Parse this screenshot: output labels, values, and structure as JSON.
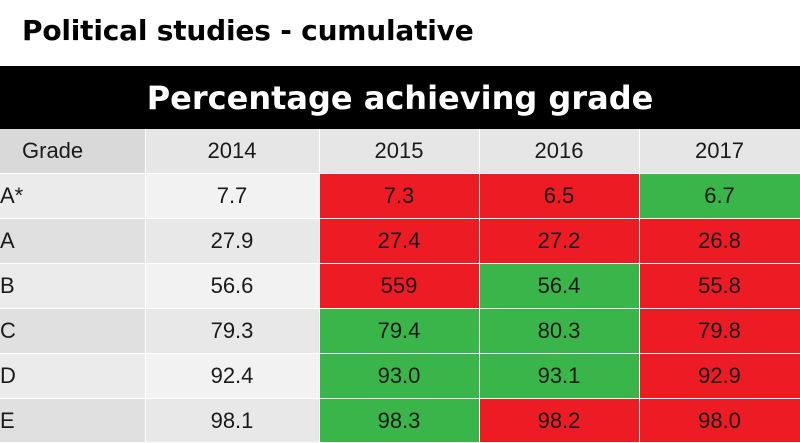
{
  "title": "Political studies - cumulative",
  "banner": "Percentage achieving grade",
  "colors": {
    "increase": "#3ab54a",
    "decrease": "#ed1c24"
  },
  "chart_data": {
    "type": "table",
    "columns": [
      "Grade",
      "2014",
      "2015",
      "2016",
      "2017"
    ],
    "rows": [
      {
        "grade": "A*",
        "values": [
          "7.7",
          "7.3",
          "6.5",
          "6.7"
        ],
        "change": [
          "none",
          "down",
          "down",
          "up"
        ]
      },
      {
        "grade": "A",
        "values": [
          "27.9",
          "27.4",
          "27.2",
          "26.8"
        ],
        "change": [
          "none",
          "down",
          "down",
          "down"
        ]
      },
      {
        "grade": "B",
        "values": [
          "56.6",
          "559",
          "56.4",
          "55.8"
        ],
        "change": [
          "none",
          "down",
          "up",
          "down"
        ]
      },
      {
        "grade": "C",
        "values": [
          "79.3",
          "79.4",
          "80.3",
          "79.8"
        ],
        "change": [
          "none",
          "up",
          "up",
          "down"
        ]
      },
      {
        "grade": "D",
        "values": [
          "92.4",
          "93.0",
          "93.1",
          "92.9"
        ],
        "change": [
          "none",
          "up",
          "up",
          "down"
        ]
      },
      {
        "grade": "E",
        "values": [
          "98.1",
          "98.3",
          "98.2",
          "98.0"
        ],
        "change": [
          "none",
          "up",
          "down",
          "down"
        ]
      }
    ]
  }
}
